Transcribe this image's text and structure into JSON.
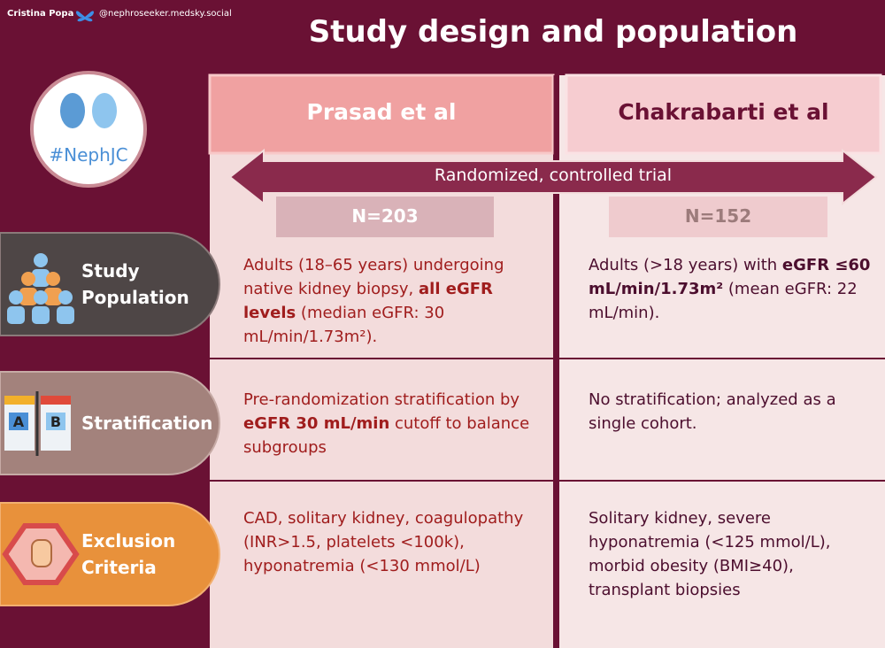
{
  "credit": {
    "author": "Cristina Popa",
    "handle": "@nephroseeker.medsky.social"
  },
  "title": "Study design and population",
  "logo": "#NephJC",
  "columns": [
    "Prasad et al",
    "Chakrabarti et al"
  ],
  "design": "Randomized, controlled trial",
  "sample_sizes": [
    "N=203",
    "N=152"
  ],
  "rows": [
    {
      "label": [
        "Study",
        "Population"
      ],
      "cells": [
        [
          {
            "text": "Adults (18–65 years) undergoing native kidney biopsy, "
          },
          {
            "text": "all eGFR levels",
            "bold": true
          },
          {
            "text": " (median eGFR: 30 mL/min/1.73m²)."
          }
        ],
        [
          {
            "text": "Adults (>18 years) with "
          },
          {
            "text": "eGFR ≤60 mL/min/1.73m²",
            "bold": true
          },
          {
            "text": " (mean eGFR: 22 mL/min)."
          }
        ]
      ]
    },
    {
      "label": [
        "Stratification"
      ],
      "cells": [
        [
          {
            "text": "Pre-randomization stratification by "
          },
          {
            "text": "eGFR 30 mL/min",
            "bold": true
          },
          {
            "text": " cutoff to balance subgroups"
          }
        ],
        [
          {
            "text": "No stratification; analyzed as a single cohort."
          }
        ]
      ]
    },
    {
      "label": [
        "Exclusion",
        "Criteria"
      ],
      "cells": [
        [
          {
            "text": "CAD, solitary kidney, coagulopathy (INR>1.5, platelets <100k), hyponatremia (<130 mmol/L)"
          }
        ],
        [
          {
            "text": "Solitary kidney, severe hyponatremia (<125 mmol/L), morbid obesity (BMI≥40), transplant biopsies"
          }
        ]
      ]
    }
  ]
}
